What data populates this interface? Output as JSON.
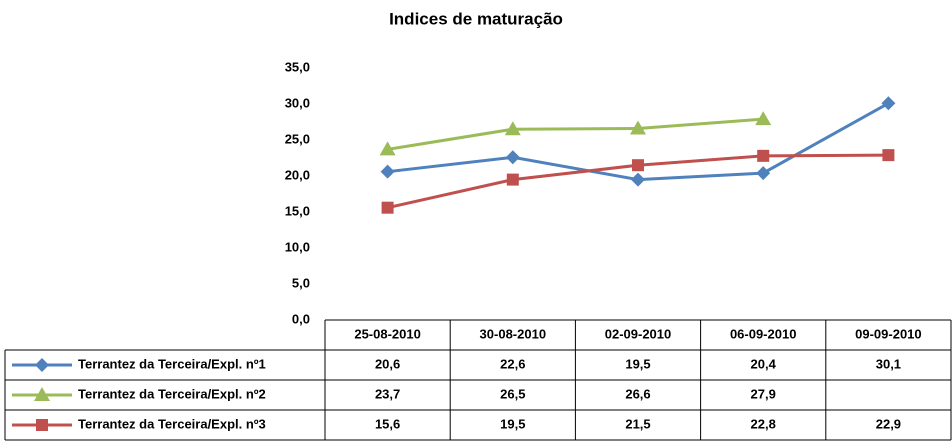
{
  "chart_data": {
    "type": "line",
    "title": "Indices de maturação",
    "categories": [
      "25-08-2010",
      "30-08-2010",
      "02-09-2010",
      "06-09-2010",
      "09-09-2010"
    ],
    "series": [
      {
        "name": "Terrantez da Terceira/Expl. nº1",
        "color": "#4F81BD",
        "marker": "diamond",
        "values": [
          20.6,
          22.6,
          19.5,
          20.4,
          30.1
        ],
        "value_labels": [
          "20,6",
          "22,6",
          "19,5",
          "20,4",
          "30,1"
        ]
      },
      {
        "name": "Terrantez da Terceira/Expl. nº2",
        "color": "#9BBB59",
        "marker": "triangle",
        "values": [
          23.7,
          26.5,
          26.6,
          27.9,
          null
        ],
        "value_labels": [
          "23,7",
          "26,5",
          "26,6",
          "27,9",
          null
        ]
      },
      {
        "name": "Terrantez da Terceira/Expl. nº3",
        "color": "#C0504D",
        "marker": "square",
        "values": [
          15.6,
          19.5,
          21.5,
          22.8,
          22.9
        ],
        "value_labels": [
          "15,6",
          "19,5",
          "21,5",
          "22,8",
          "22,9"
        ]
      }
    ],
    "ylim": [
      0,
      35
    ],
    "yticks": [
      {
        "value": 0,
        "label": "0,0"
      },
      {
        "value": 5,
        "label": "5,0"
      },
      {
        "value": 10,
        "label": "10,0"
      },
      {
        "value": 15,
        "label": "15,0"
      },
      {
        "value": 20,
        "label": "20,0"
      },
      {
        "value": 25,
        "label": "25,0"
      },
      {
        "value": 30,
        "label": "30,0"
      },
      {
        "value": 35,
        "label": "35,0"
      }
    ],
    "grid": false
  }
}
